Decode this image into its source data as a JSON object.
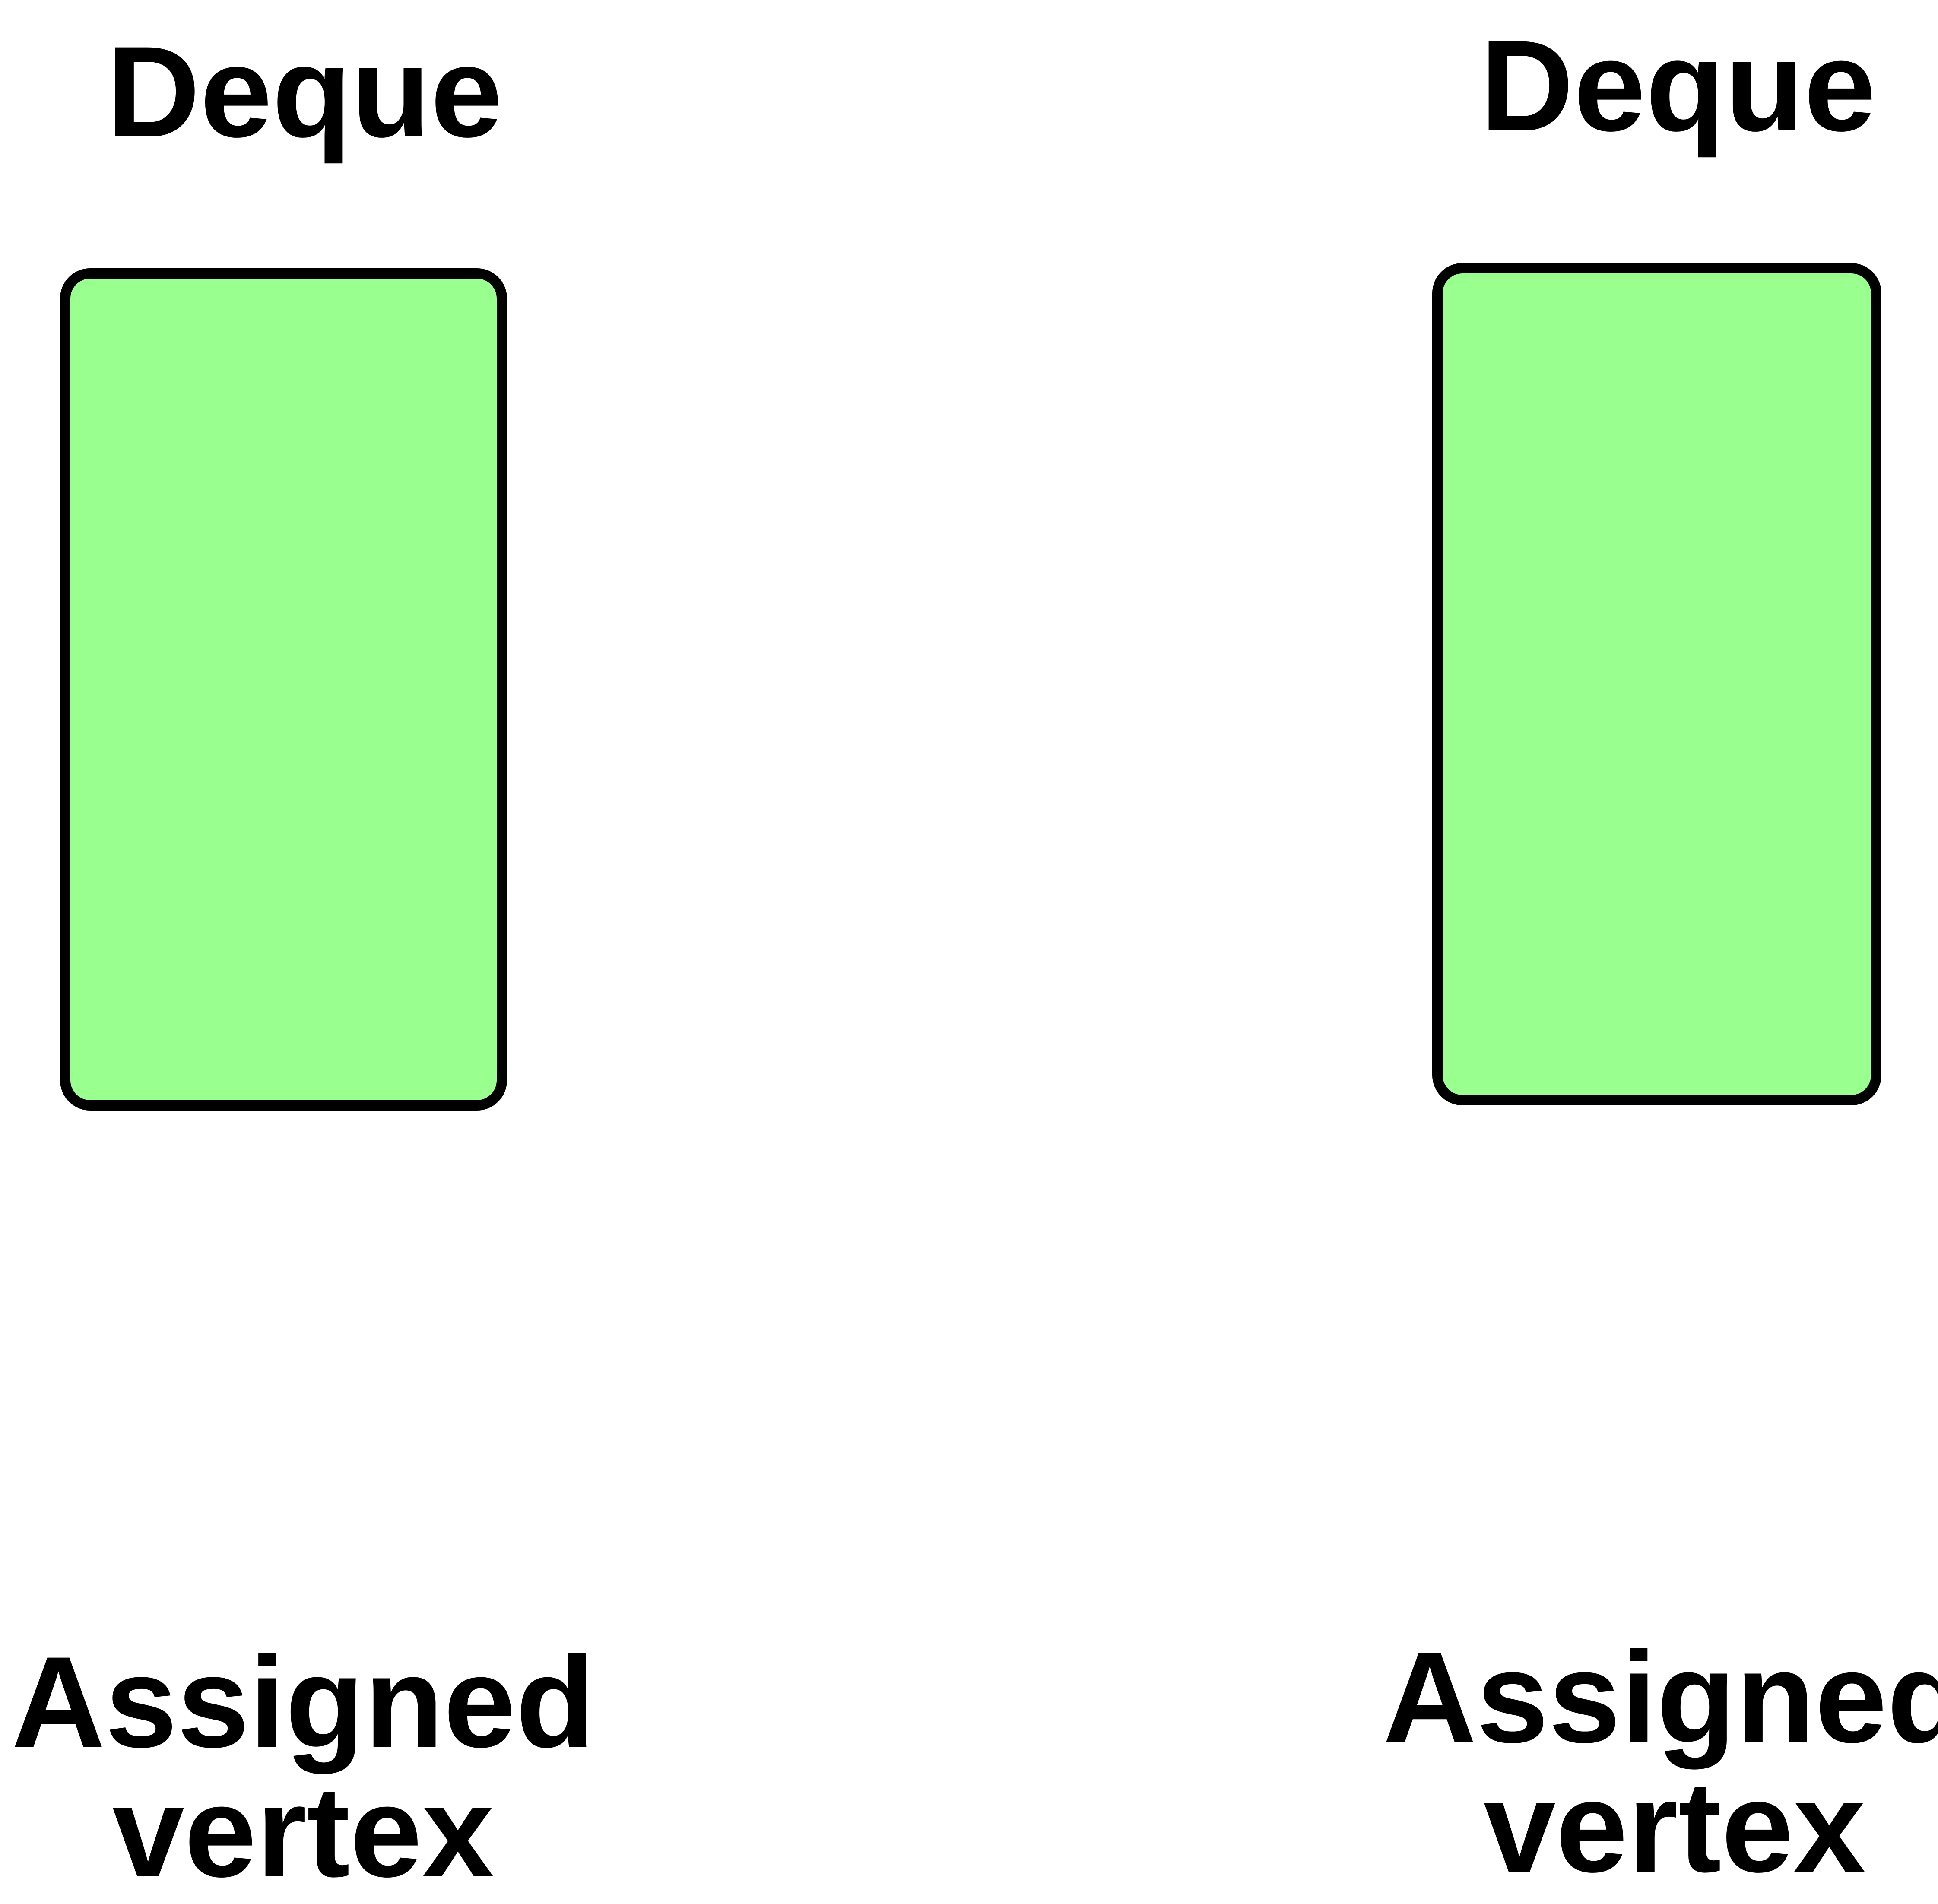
{
  "columns": [
    {
      "deque_label": "Deque",
      "vertex_label_line1": "Assigned",
      "vertex_label_line2": "vertex"
    },
    {
      "deque_label": "Deque",
      "vertex_label_line1": "Assigned",
      "vertex_label_line2": "vertex"
    }
  ],
  "colors": {
    "box_fill": "#99ff8f",
    "box_stroke": "#000000",
    "text": "#000000",
    "background": "#ffffff"
  }
}
